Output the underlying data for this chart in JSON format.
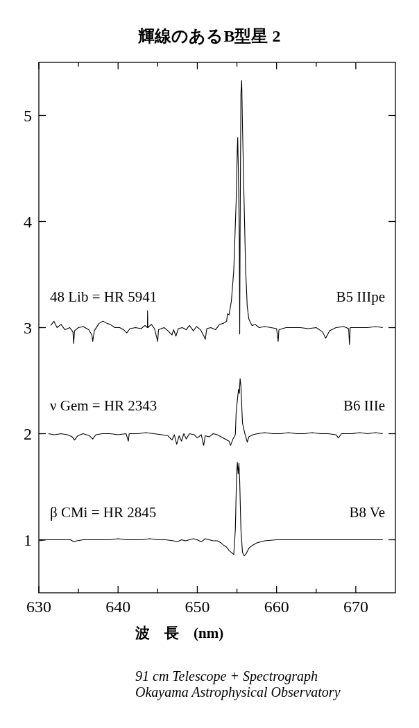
{
  "chart_data": {
    "type": "line",
    "title": "輝線のあるB型星 2",
    "xlabel": "波　長　(nm)",
    "xlim": [
      630,
      675
    ],
    "ylim": [
      0.5,
      5.5
    ],
    "xticks": [
      630,
      {
        "value": 635,
        "label": null
      },
      640,
      {
        "value": 645,
        "label": null
      },
      650,
      {
        "value": 655,
        "label": null
      },
      660,
      {
        "value": 665,
        "label": null
      },
      670
    ],
    "yticks": [
      1,
      2,
      3,
      4,
      5
    ],
    "annotations": [
      "B5 IIIpe",
      "B6 IIIe",
      "B8 Ve",
      "91 cm Telescope + Spectrograph",
      "Okayama Astrophysical Observatory"
    ],
    "series": [
      {
        "name": "48 Lib = HR 5941",
        "color": "#000000",
        "x": [
          631.5,
          631.9,
          632.3,
          632.8,
          633.3,
          633.9,
          634.3,
          634.4,
          634.5,
          635.0,
          635.6,
          636.3,
          636.7,
          636.8,
          637.0,
          637.6,
          638.1,
          638.6,
          639.0,
          639.6,
          640.2,
          640.7,
          641.1,
          641.5,
          642.2,
          642.9,
          643.4,
          643.7,
          643.72,
          643.75,
          644.2,
          644.6,
          645.0,
          645.1,
          645.8,
          646.3,
          646.8,
          647.0,
          647.3,
          647.6,
          648.1,
          648.6,
          649.0,
          649.5,
          649.9,
          650.4,
          650.9,
          651.0,
          651.2,
          651.7,
          652.3,
          652.8,
          653.3,
          653.7,
          653.8,
          654.0,
          654.3,
          654.6,
          654.9,
          655.05,
          655.1,
          655.2,
          655.3,
          655.35,
          655.4,
          655.5,
          655.6,
          655.7,
          655.9,
          656.1,
          656.3,
          656.5,
          656.9,
          657.3,
          657.8,
          658.5,
          659.3,
          660.0,
          660.2,
          660.3,
          661.2,
          662.0,
          663.0,
          664.0,
          665.0,
          665.8,
          666.2,
          666.7,
          667.5,
          668.5,
          669.1,
          669.2,
          669.3,
          670.3,
          671.5,
          672.5,
          673.4
        ],
        "values": [
          3.02,
          3.06,
          3.0,
          3.03,
          2.98,
          3.0,
          2.96,
          2.85,
          2.97,
          3.0,
          3.01,
          2.98,
          2.93,
          2.87,
          2.97,
          3.04,
          3.06,
          3.04,
          3.03,
          3.0,
          3.0,
          2.98,
          2.95,
          2.99,
          3.0,
          2.99,
          3.02,
          3.0,
          3.16,
          3.0,
          3.03,
          2.99,
          2.87,
          2.98,
          3.0,
          2.97,
          2.93,
          2.98,
          2.92,
          2.99,
          3.0,
          2.98,
          3.02,
          2.97,
          3.01,
          2.98,
          2.91,
          2.89,
          2.99,
          3.0,
          2.98,
          3.03,
          3.04,
          3.06,
          3.13,
          3.12,
          3.25,
          3.54,
          4.19,
          4.7,
          4.79,
          4.4,
          3.82,
          2.94,
          3.9,
          5.2,
          5.33,
          4.9,
          4.19,
          3.54,
          3.2,
          3.08,
          3.02,
          3.03,
          3.0,
          3.01,
          3.0,
          2.99,
          2.87,
          2.98,
          3.0,
          3.0,
          3.0,
          2.99,
          3.0,
          2.96,
          2.9,
          2.97,
          3.0,
          3.01,
          2.99,
          2.84,
          3.0,
          3.0,
          3.0,
          3.01,
          3.0
        ]
      },
      {
        "name": "ν  Gem = HR 2343",
        "color": "#000000",
        "x": [
          631.2,
          632.0,
          632.8,
          633.6,
          634.2,
          634.5,
          634.9,
          635.6,
          636.4,
          636.8,
          637.2,
          638.0,
          639.0,
          640.0,
          641.0,
          641.3,
          641.4,
          642.5,
          643.5,
          644.5,
          645.5,
          646.3,
          646.8,
          647.1,
          647.4,
          647.7,
          648.0,
          648.3,
          648.6,
          649.0,
          649.6,
          650.0,
          650.5,
          650.8,
          651.0,
          651.5,
          652.0,
          652.5,
          653.0,
          653.5,
          654.0,
          654.2,
          654.5,
          654.8,
          654.9,
          655.1,
          655.2,
          655.3,
          655.4,
          655.5,
          655.7,
          656.0,
          656.2,
          656.3,
          656.5,
          657.0,
          657.6,
          658.5,
          659.5,
          660.5,
          661.5,
          662.5,
          663.5,
          664.5,
          665.5,
          666.5,
          667.5,
          667.8,
          668.2,
          669.5,
          670.5,
          671.5,
          672.5,
          673.4
        ],
        "values": [
          2.0,
          1.99,
          2.0,
          1.99,
          1.97,
          1.94,
          1.98,
          2.0,
          1.98,
          1.95,
          1.99,
          2.0,
          2.0,
          1.99,
          2.0,
          1.93,
          2.0,
          2.0,
          2.01,
          2.0,
          1.99,
          1.98,
          1.94,
          1.99,
          1.9,
          1.98,
          1.93,
          2.0,
          1.95,
          2.0,
          1.99,
          1.96,
          1.99,
          1.89,
          1.98,
          1.97,
          2.0,
          1.99,
          1.97,
          1.95,
          1.93,
          1.89,
          1.95,
          1.99,
          2.2,
          2.35,
          2.42,
          2.38,
          2.52,
          2.45,
          2.1,
          2.0,
          1.95,
          1.92,
          1.97,
          1.99,
          2.0,
          2.01,
          2.0,
          2.0,
          2.01,
          2.0,
          2.0,
          2.01,
          2.0,
          2.0,
          1.99,
          1.96,
          2.0,
          2.0,
          2.01,
          2.0,
          2.01,
          2.0
        ]
      },
      {
        "name": "β  CMi = HR 2845",
        "color": "#000000",
        "x": [
          630.0,
          631.0,
          632.0,
          633.0,
          634.0,
          634.4,
          634.8,
          635.6,
          636.8,
          638.0,
          639.0,
          640.0,
          641.0,
          642.0,
          643.0,
          644.0,
          645.0,
          646.0,
          647.0,
          647.5,
          648.0,
          648.5,
          649.0,
          649.5,
          650.0,
          650.5,
          651.0,
          651.5,
          652.0,
          652.5,
          653.0,
          653.3,
          653.7,
          654.0,
          654.3,
          654.6,
          654.8,
          654.95,
          655.05,
          655.15,
          655.25,
          655.35,
          655.5,
          655.7,
          655.9,
          656.1,
          656.5,
          657.0,
          657.5,
          658.5,
          660.0,
          662.0,
          664.0,
          666.0,
          668.0,
          670.0,
          672.0,
          673.4
        ],
        "values": [
          0.99,
          1.0,
          1.0,
          1.0,
          1.0,
          0.98,
          0.99,
          1.0,
          1.0,
          1.0,
          1.0,
          1.01,
          1.0,
          1.0,
          1.0,
          1.01,
          1.0,
          1.0,
          0.99,
          0.98,
          1.0,
          0.99,
          1.0,
          1.01,
          1.0,
          0.98,
          1.01,
          1.0,
          0.99,
          0.99,
          0.97,
          0.95,
          0.93,
          0.9,
          0.88,
          0.86,
          1.1,
          1.6,
          1.73,
          1.62,
          1.72,
          1.55,
          1.1,
          0.88,
          0.85,
          0.86,
          0.92,
          0.95,
          0.97,
          0.99,
          1.0,
          1.0,
          1.0,
          1.0,
          1.0,
          1.0,
          1.0,
          1.0
        ]
      }
    ]
  }
}
